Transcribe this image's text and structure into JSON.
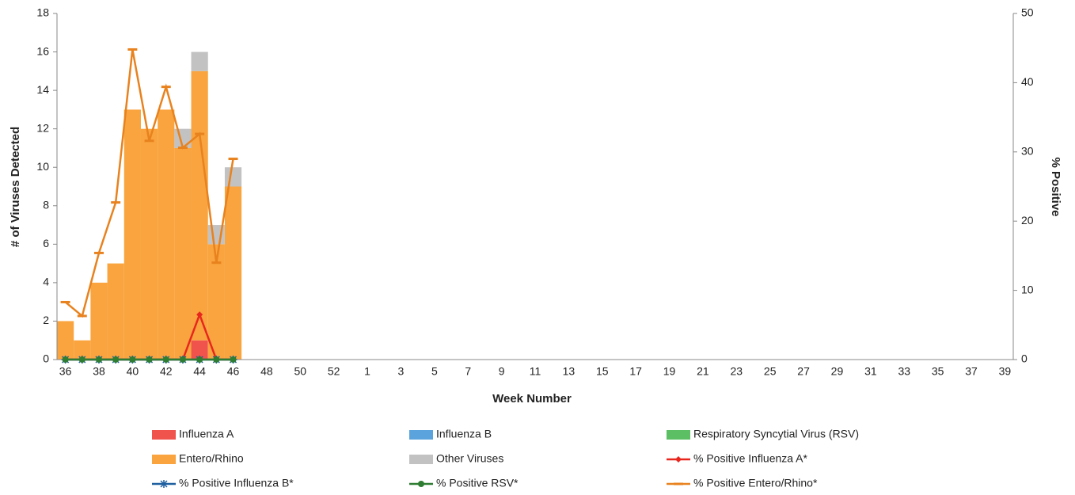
{
  "chart_data": {
    "type": "bar",
    "x_label": "Week Number",
    "y_label": "# of Viruses Detected",
    "y2_label": "% Positive",
    "categories": [
      "36",
      null,
      "38",
      null,
      "40",
      null,
      "42",
      null,
      "44",
      null,
      "46",
      null,
      "48",
      null,
      "50",
      null,
      "52",
      null,
      "1",
      null,
      "3",
      null,
      "5",
      null,
      "7",
      null,
      "9",
      null,
      "11",
      null,
      "13",
      null,
      "15",
      null,
      "17",
      null,
      "19",
      null,
      "21",
      null,
      "23",
      null,
      "25",
      null,
      "27",
      null,
      "29",
      null,
      "31",
      null,
      "33",
      null,
      "35",
      null,
      "37",
      null,
      "39"
    ],
    "ylim": [
      0,
      18
    ],
    "yticks": [
      0,
      2,
      4,
      6,
      8,
      10,
      12,
      14,
      16,
      18
    ],
    "y2lim": [
      0,
      50
    ],
    "y2ticks": [
      0,
      10,
      20,
      30,
      40,
      50
    ],
    "series": [
      {
        "name": "Influenza A",
        "type": "bar",
        "color": "#f0524c",
        "values": [
          0,
          0,
          0,
          0,
          0,
          0,
          0,
          0,
          1,
          0,
          0,
          null,
          null,
          null,
          null,
          null,
          null,
          null,
          null,
          null,
          null,
          null,
          null,
          null,
          null,
          null,
          null,
          null,
          null,
          null,
          null,
          null,
          null,
          null,
          null,
          null,
          null,
          null,
          null,
          null,
          null,
          null,
          null,
          null,
          null,
          null,
          null,
          null,
          null,
          null,
          null,
          null,
          null,
          null,
          null,
          null,
          null
        ]
      },
      {
        "name": "Influenza B",
        "type": "bar",
        "color": "#5ba3dc",
        "values": [
          0,
          0,
          0,
          0,
          0,
          0,
          0,
          0,
          0,
          0,
          0,
          null,
          null,
          null,
          null,
          null,
          null,
          null,
          null,
          null,
          null,
          null,
          null,
          null,
          null,
          null,
          null,
          null,
          null,
          null,
          null,
          null,
          null,
          null,
          null,
          null,
          null,
          null,
          null,
          null,
          null,
          null,
          null,
          null,
          null,
          null,
          null,
          null,
          null,
          null,
          null,
          null,
          null,
          null,
          null,
          null,
          null
        ]
      },
      {
        "name": "Respiratory Syncytial Virus (RSV)",
        "type": "bar",
        "color": "#5cbf63",
        "values": [
          0,
          0,
          0,
          0,
          0,
          0,
          0,
          0,
          0,
          0,
          0,
          null,
          null,
          null,
          null,
          null,
          null,
          null,
          null,
          null,
          null,
          null,
          null,
          null,
          null,
          null,
          null,
          null,
          null,
          null,
          null,
          null,
          null,
          null,
          null,
          null,
          null,
          null,
          null,
          null,
          null,
          null,
          null,
          null,
          null,
          null,
          null,
          null,
          null,
          null,
          null,
          null,
          null,
          null,
          null,
          null,
          null
        ]
      },
      {
        "name": "Entero/Rhino",
        "type": "bar",
        "color": "#f9a43e",
        "values": [
          2,
          1,
          4,
          5,
          13,
          12,
          13,
          11,
          14,
          6,
          9,
          null,
          null,
          null,
          null,
          null,
          null,
          null,
          null,
          null,
          null,
          null,
          null,
          null,
          null,
          null,
          null,
          null,
          null,
          null,
          null,
          null,
          null,
          null,
          null,
          null,
          null,
          null,
          null,
          null,
          null,
          null,
          null,
          null,
          null,
          null,
          null,
          null,
          null,
          null,
          null,
          null,
          null,
          null,
          null,
          null,
          null
        ]
      },
      {
        "name": "Other Viruses",
        "type": "bar",
        "color": "#c2c2c2",
        "values": [
          0,
          0,
          0,
          0,
          0,
          0,
          0,
          1,
          1,
          1,
          1,
          null,
          null,
          null,
          null,
          null,
          null,
          null,
          null,
          null,
          null,
          null,
          null,
          null,
          null,
          null,
          null,
          null,
          null,
          null,
          null,
          null,
          null,
          null,
          null,
          null,
          null,
          null,
          null,
          null,
          null,
          null,
          null,
          null,
          null,
          null,
          null,
          null,
          null,
          null,
          null,
          null,
          null,
          null,
          null,
          null,
          null
        ]
      },
      {
        "name": "% Positive Influenza A*",
        "type": "line",
        "axis": "y2",
        "marker": "diamond",
        "color": "#e8261e",
        "values": [
          0,
          0,
          0,
          0,
          0,
          0,
          0,
          0,
          6.5,
          0,
          0,
          null,
          null,
          null,
          null,
          null,
          null,
          null,
          null,
          null,
          null,
          null,
          null,
          null,
          null,
          null,
          null,
          null,
          null,
          null,
          null,
          null,
          null,
          null,
          null,
          null,
          null,
          null,
          null,
          null,
          null,
          null,
          null,
          null,
          null,
          null,
          null,
          null,
          null,
          null,
          null,
          null,
          null,
          null,
          null,
          null,
          null
        ]
      },
      {
        "name": "% Positive Influenza B*",
        "type": "line",
        "axis": "y2",
        "marker": "star",
        "color": "#1f5fa0",
        "values": [
          0,
          0,
          0,
          0,
          0,
          0,
          0,
          0,
          0,
          0,
          0,
          null,
          null,
          null,
          null,
          null,
          null,
          null,
          null,
          null,
          null,
          null,
          null,
          null,
          null,
          null,
          null,
          null,
          null,
          null,
          null,
          null,
          null,
          null,
          null,
          null,
          null,
          null,
          null,
          null,
          null,
          null,
          null,
          null,
          null,
          null,
          null,
          null,
          null,
          null,
          null,
          null,
          null,
          null,
          null,
          null,
          null
        ]
      },
      {
        "name": "% Positive RSV*",
        "type": "line",
        "axis": "y2",
        "marker": "circle",
        "color": "#2e7d32",
        "values": [
          0,
          0,
          0,
          0,
          0,
          0,
          0,
          0,
          0,
          0,
          0,
          null,
          null,
          null,
          null,
          null,
          null,
          null,
          null,
          null,
          null,
          null,
          null,
          null,
          null,
          null,
          null,
          null,
          null,
          null,
          null,
          null,
          null,
          null,
          null,
          null,
          null,
          null,
          null,
          null,
          null,
          null,
          null,
          null,
          null,
          null,
          null,
          null,
          null,
          null,
          null,
          null,
          null,
          null,
          null,
          null,
          null
        ]
      },
      {
        "name": "% Positive Entero/Rhino*",
        "type": "line",
        "axis": "y2",
        "marker": "dash",
        "color": "#e8821e",
        "values": [
          8.3,
          6.3,
          15.4,
          22.7,
          44.8,
          31.6,
          39.4,
          30.6,
          32.6,
          14.0,
          29.0,
          null,
          null,
          null,
          null,
          null,
          null,
          null,
          null,
          null,
          null,
          null,
          null,
          null,
          null,
          null,
          null,
          null,
          null,
          null,
          null,
          null,
          null,
          null,
          null,
          null,
          null,
          null,
          null,
          null,
          null,
          null,
          null,
          null,
          null,
          null,
          null,
          null,
          null,
          null,
          null,
          null,
          null,
          null,
          null,
          null,
          null
        ]
      }
    ]
  }
}
